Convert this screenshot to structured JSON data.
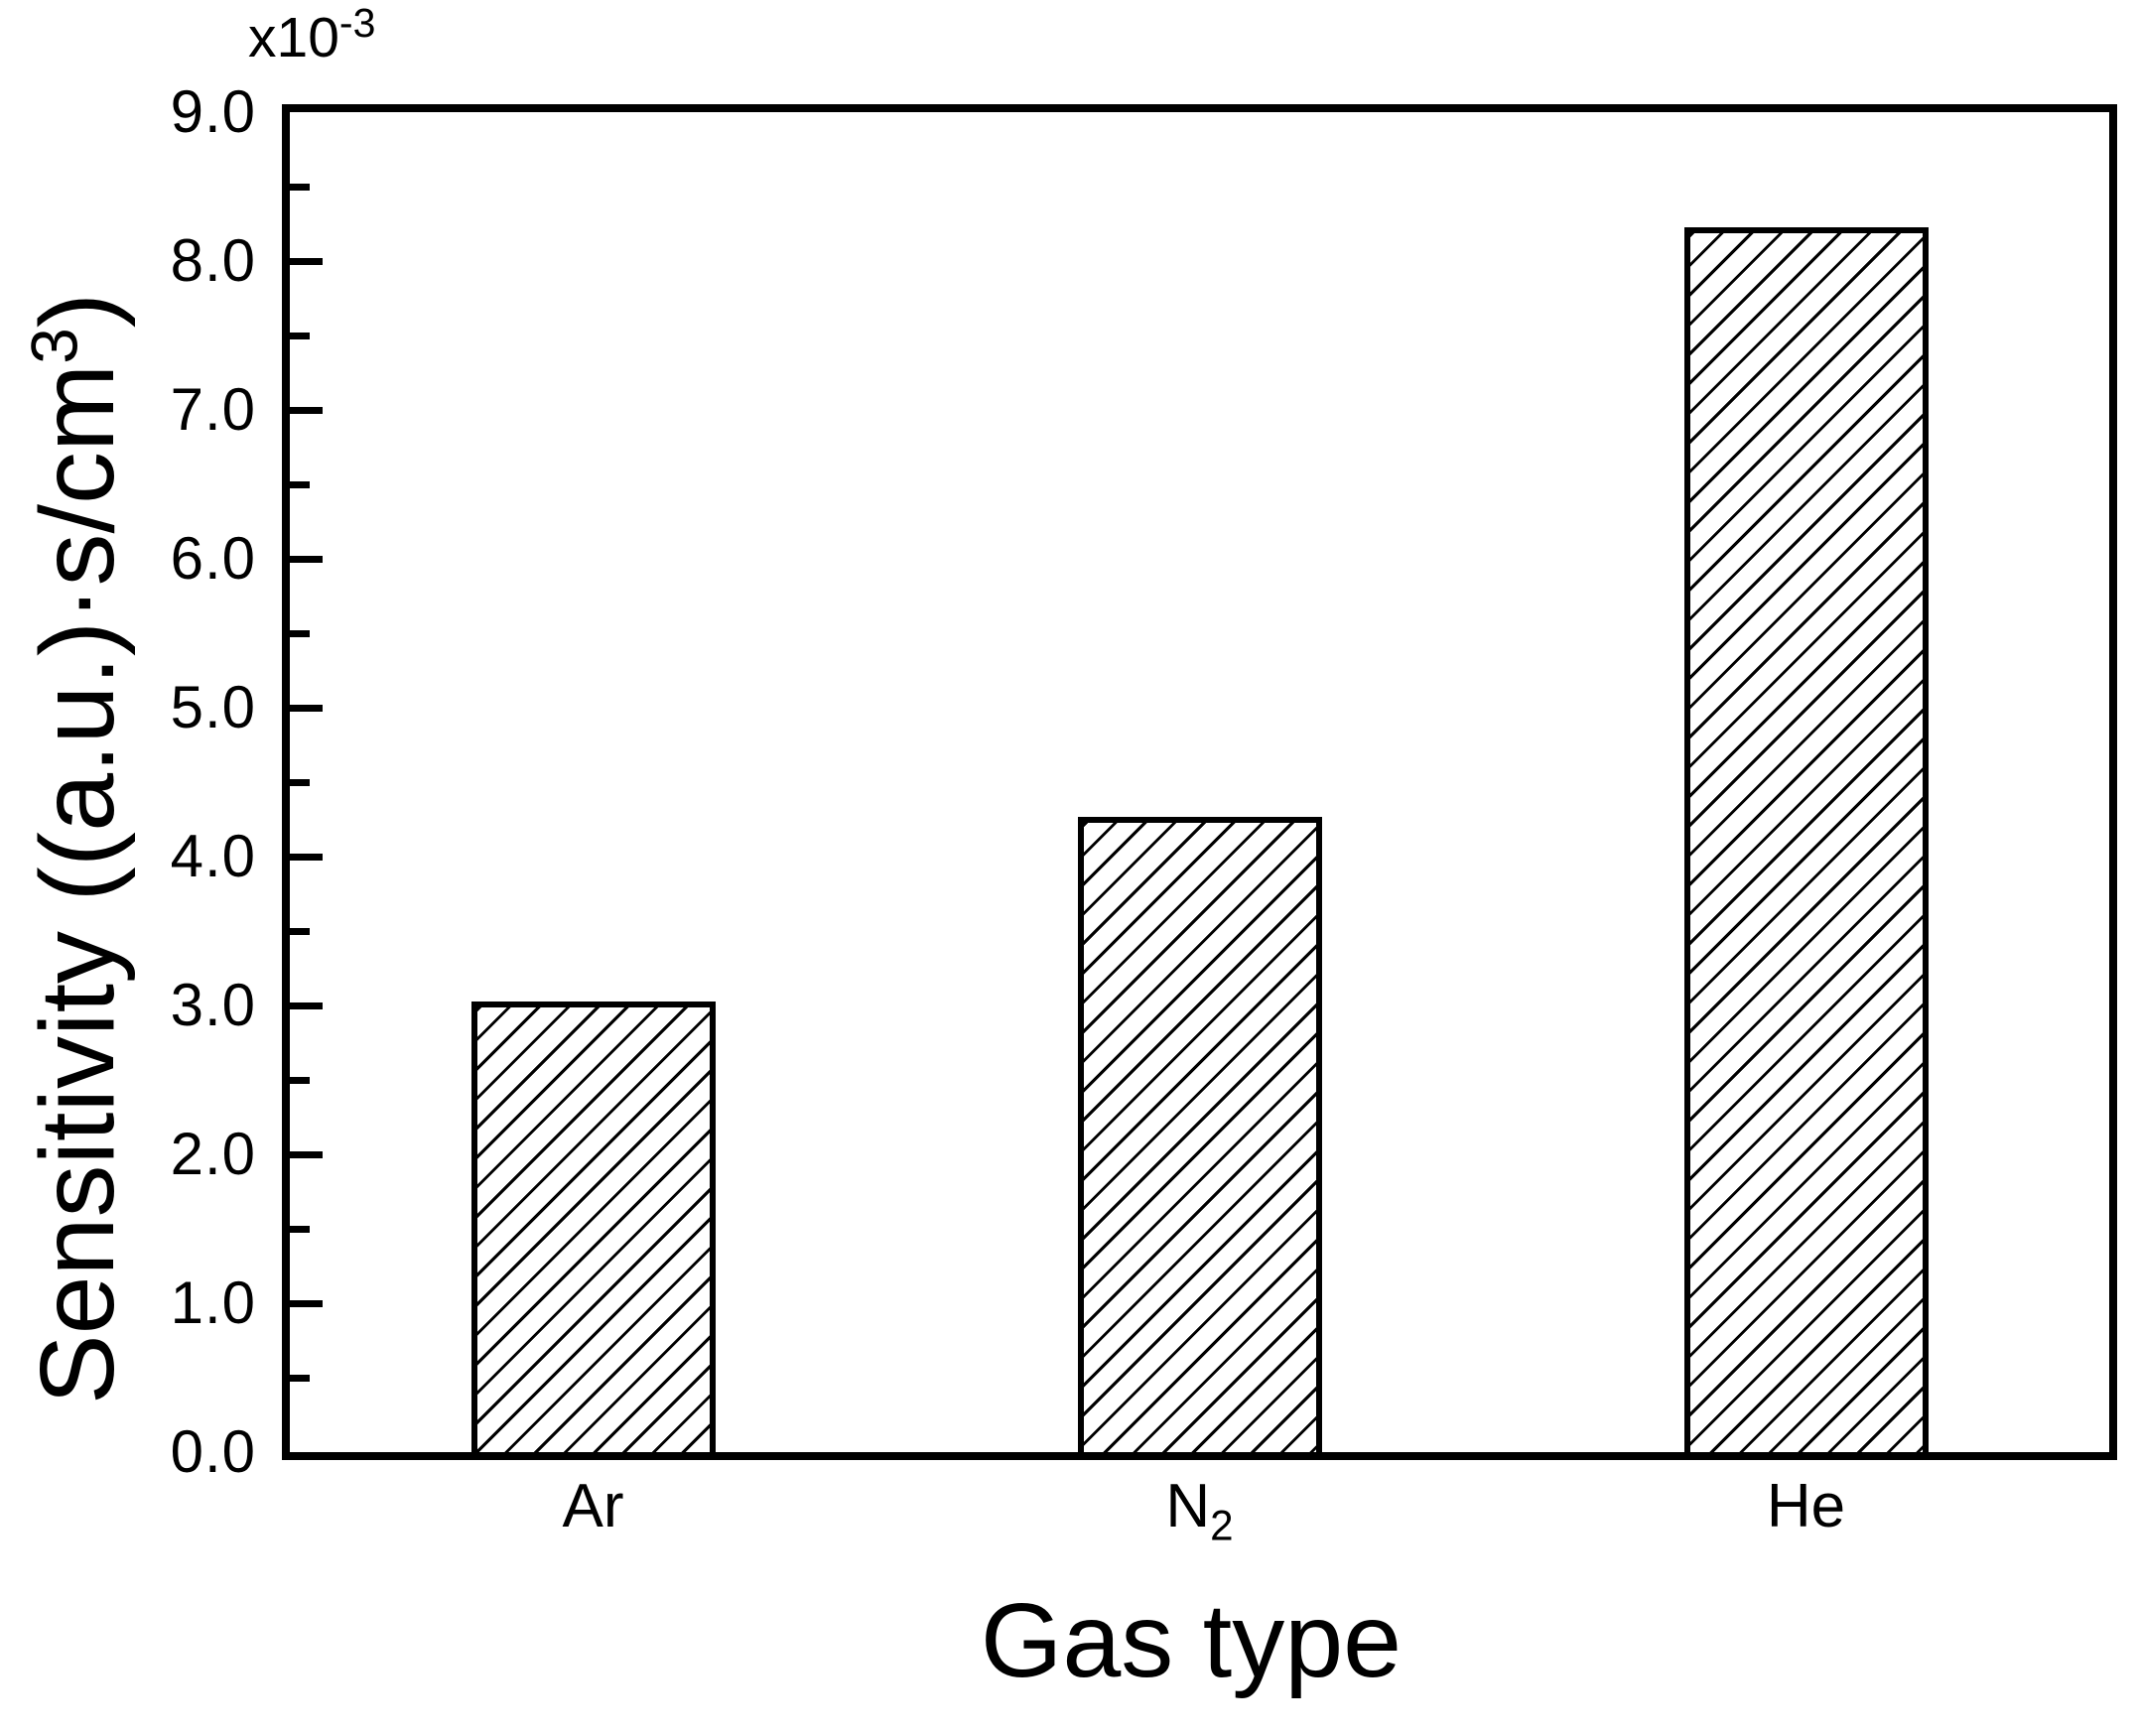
{
  "figure": {
    "background": "#ffffff",
    "line_color": "#000000"
  },
  "chart_data": {
    "type": "bar",
    "title": "",
    "xlabel": "Gas type",
    "ylabel": "Sensitivity ((a.u.)·s/cm³)",
    "ylabel_rich": {
      "pre": "Sensitivity ((a.u.)·s/cm",
      "sup": "3",
      "post": ")"
    },
    "y_multiplier": {
      "base": "x10",
      "sup": "-3"
    },
    "categories": [
      {
        "text": "Ar",
        "sub": ""
      },
      {
        "text": "N",
        "sub": "2"
      },
      {
        "text": "He",
        "sub": ""
      }
    ],
    "values": [
      3.03,
      4.27,
      8.23
    ],
    "ylim": [
      0,
      9
    ],
    "ytick_step": 1.0,
    "yminor_step": 0.5,
    "ytick_labels": [
      "0.0",
      "1.0",
      "2.0",
      "3.0",
      "4.0",
      "5.0",
      "6.0",
      "7.0",
      "8.0",
      "9.0"
    ],
    "grid": false,
    "legend": null,
    "bar_fill": "diagonal-hatch",
    "hatch_color": "#000000"
  }
}
